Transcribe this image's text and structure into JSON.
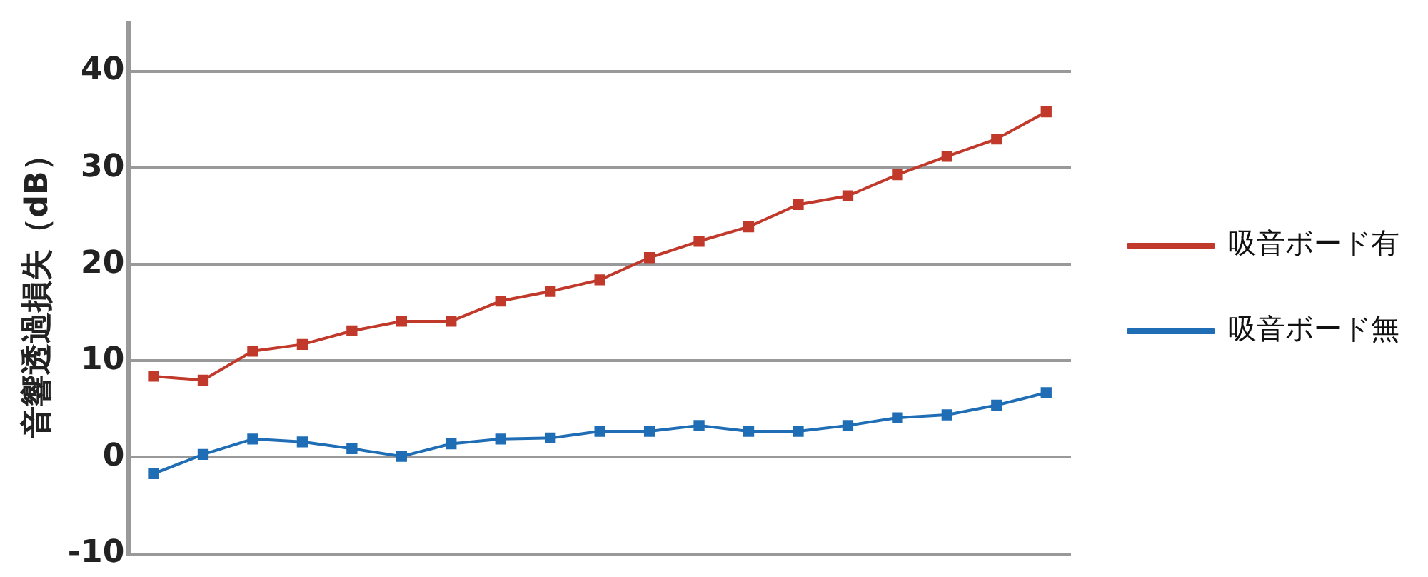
{
  "chart_data": {
    "type": "line",
    "ylabel": "音響透過損失（dB）",
    "categories": [
      null,
      null,
      null,
      null,
      null,
      null,
      null,
      null,
      null,
      null,
      null,
      null,
      null,
      null,
      null,
      null,
      null,
      null,
      null
    ],
    "series": [
      {
        "name": "吸音ボード有",
        "color": "#c0392b",
        "values": [
          8.4,
          8.0,
          11.0,
          11.7,
          13.1,
          14.1,
          14.1,
          16.2,
          17.2,
          18.4,
          20.7,
          22.4,
          23.9,
          26.2,
          27.1,
          29.3,
          31.2,
          33.0,
          35.8
        ]
      },
      {
        "name": "吸音ボード無",
        "color": "#1f6db5",
        "values": [
          -1.7,
          0.3,
          1.9,
          1.6,
          0.9,
          0.1,
          1.4,
          1.9,
          2.0,
          2.7,
          2.7,
          3.3,
          2.7,
          2.7,
          3.3,
          4.1,
          4.4,
          5.4,
          6.7
        ]
      }
    ],
    "ylim": [
      -10,
      45
    ],
    "yticks": [
      -10,
      0,
      10,
      20,
      30,
      40
    ],
    "grid": "y",
    "legend": "right",
    "tick_labels": "y",
    "marker": "square",
    "line_style": "solid"
  }
}
